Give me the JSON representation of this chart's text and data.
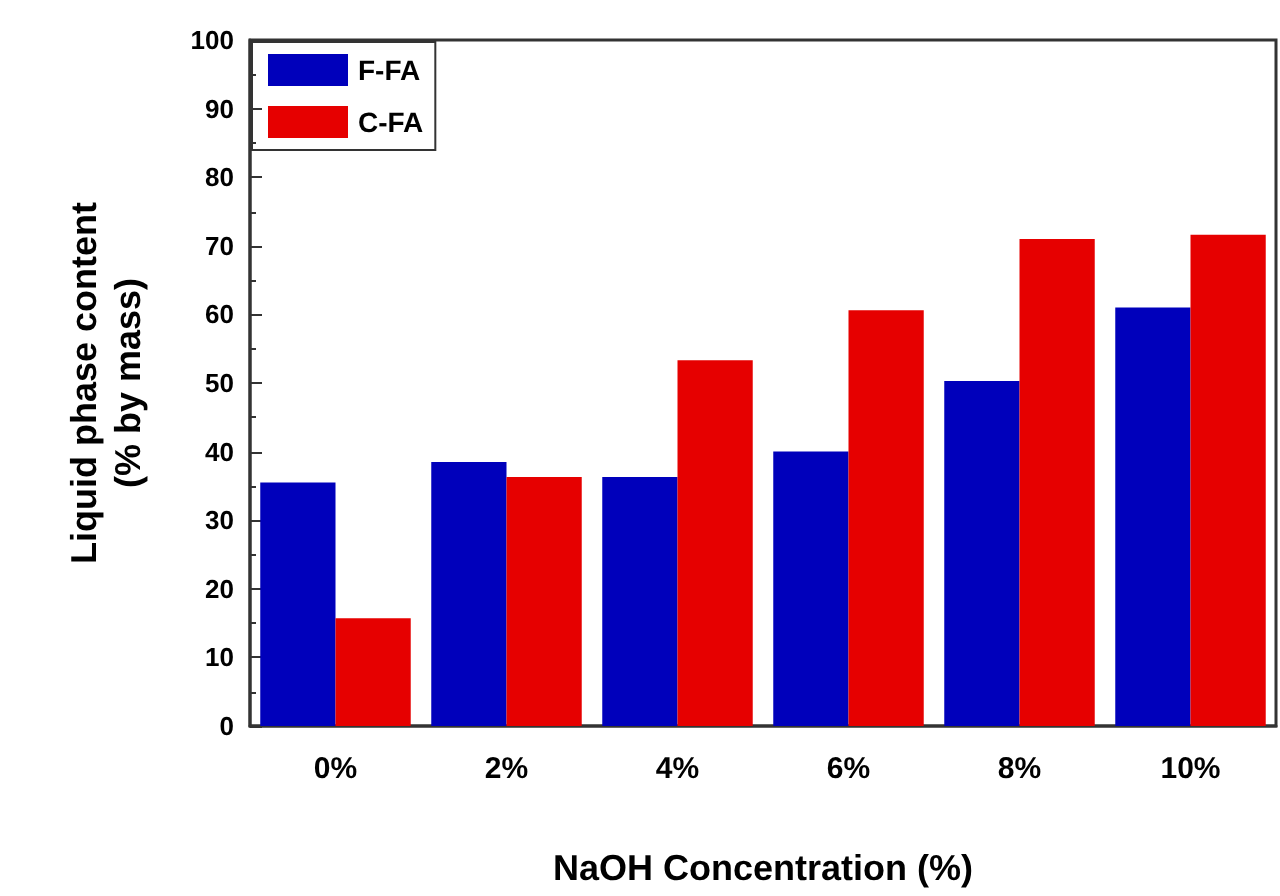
{
  "chart_data": {
    "type": "bar",
    "xlabel": "NaOH Concentration (%)",
    "ylabel": "Liquid phase content (% by mass)",
    "categories": [
      "0%",
      "2%",
      "4%",
      "6%",
      "8%",
      "10%"
    ],
    "series": [
      {
        "name": "F-FA",
        "color": "#0000bb",
        "values": [
          35.5,
          38.5,
          36.3,
          40,
          50.3,
          61
        ]
      },
      {
        "name": "C-FA",
        "color": "#e60000",
        "values": [
          15.7,
          36.3,
          53.3,
          60.6,
          71,
          71.6
        ]
      }
    ],
    "ylim": [
      0,
      100
    ],
    "yticks": [
      0,
      10,
      20,
      30,
      40,
      50,
      60,
      70,
      80,
      90,
      100
    ],
    "grid": false,
    "legend": "top left"
  }
}
